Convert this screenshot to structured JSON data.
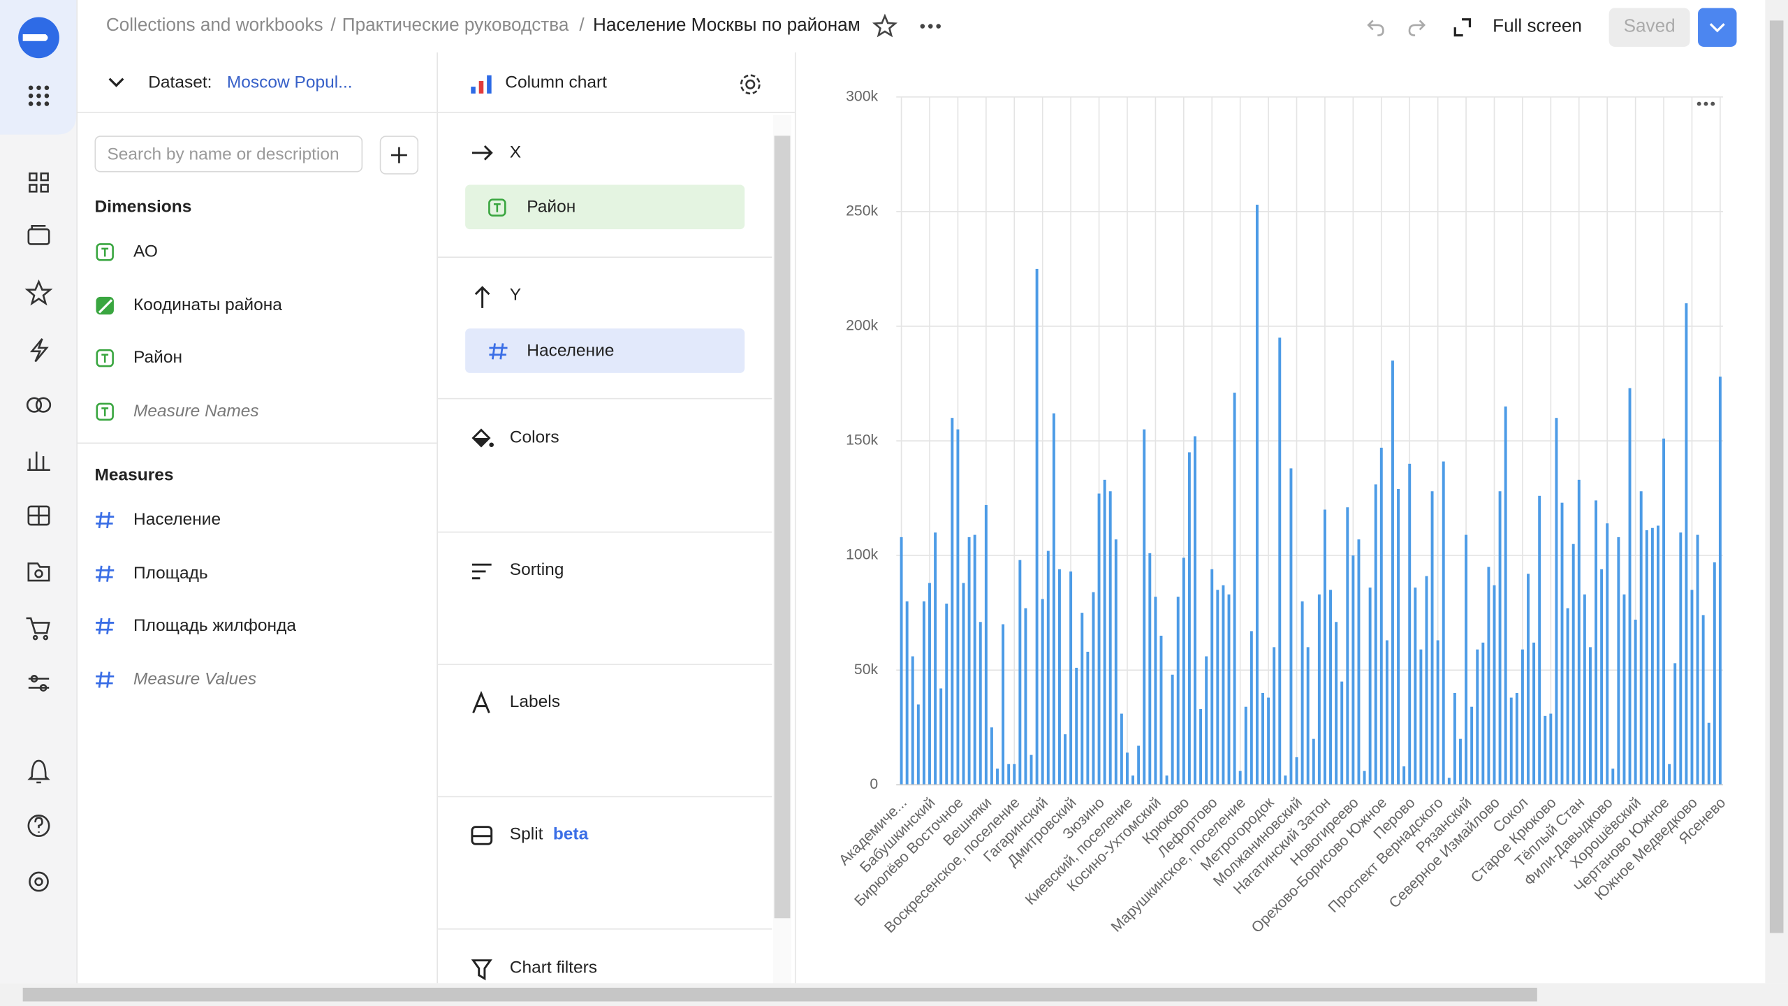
{
  "header": {
    "breadcrumbs": [
      "Collections and workbooks",
      "Практические руководства",
      "Население Москвы по районам"
    ],
    "separator": "/",
    "full_screen": "Full screen",
    "saved": "Saved"
  },
  "dataset": {
    "label": "Dataset:",
    "name": "Moscow Popul...",
    "search_placeholder": "Search by name or description"
  },
  "dimensions": {
    "title": "Dimensions",
    "items": [
      "АО",
      "Коодинаты района",
      "Район",
      "Measure Names"
    ]
  },
  "measures": {
    "title": "Measures",
    "items": [
      "Население",
      "Площадь",
      "Площадь жилфонда",
      "Measure Values"
    ]
  },
  "wizard": {
    "chart_type": "Column chart",
    "x": {
      "label": "X",
      "field": "Район"
    },
    "y": {
      "label": "Y",
      "field": "Население"
    },
    "colors": "Colors",
    "sorting": "Sorting",
    "labels": "Labels",
    "split": "Split",
    "split_badge": "beta",
    "filters": "Chart filters"
  },
  "chart_data": {
    "type": "bar",
    "color": "#4c9be6",
    "grid": true,
    "ylim": [
      0,
      300000
    ],
    "yticks": [
      0,
      {
        "value": 50000,
        "label": "50k"
      },
      {
        "value": 100000,
        "label": "100k"
      },
      {
        "value": 150000,
        "label": "150k"
      },
      {
        "value": 200000,
        "label": "200k"
      },
      {
        "value": 250000,
        "label": "250k"
      },
      {
        "value": 300000,
        "label": "300k"
      }
    ],
    "categories": [
      "Академиче...",
      null,
      null,
      null,
      null,
      "Бабушкинский",
      null,
      null,
      null,
      null,
      "Бирюлёво Восточное",
      null,
      null,
      null,
      null,
      "Вешняки",
      null,
      null,
      null,
      null,
      "Воскресенское, поселение",
      null,
      null,
      null,
      null,
      "Гагаринский",
      null,
      null,
      null,
      null,
      "Дмитровский",
      null,
      null,
      null,
      null,
      "Зюзино",
      null,
      null,
      null,
      null,
      "Киевский, поселение",
      null,
      null,
      null,
      null,
      "Косино-Ухтомский",
      null,
      null,
      null,
      null,
      "Крюково",
      null,
      null,
      null,
      null,
      "Лефортово",
      null,
      null,
      null,
      null,
      "Марушкинское, поселение",
      null,
      null,
      null,
      null,
      "Метрогородок",
      null,
      null,
      null,
      null,
      "Молжаниновский",
      null,
      null,
      null,
      null,
      "Нагатинский Затон",
      null,
      null,
      null,
      null,
      "Новогиреево",
      null,
      null,
      null,
      null,
      "Орехово-Борисово Южное",
      null,
      null,
      null,
      null,
      "Перово",
      null,
      null,
      null,
      null,
      "Проспект Вернадского",
      null,
      null,
      null,
      null,
      "Рязанский",
      null,
      null,
      null,
      null,
      "Северное Измайлово",
      null,
      null,
      null,
      null,
      "Сокол",
      null,
      null,
      null,
      null,
      "Старое Крюково",
      null,
      null,
      null,
      null,
      "Тёплый Стан",
      null,
      null,
      null,
      null,
      "Фили-Давыдково",
      null,
      null,
      null,
      null,
      "Хорошёвский",
      null,
      null,
      null,
      null,
      "Чертаново Южное",
      null,
      null,
      null,
      null,
      "Южное Медведково",
      null,
      null,
      null,
      null,
      "Ясенево"
    ],
    "values": [
      108000,
      80000,
      56000,
      35000,
      80000,
      88000,
      110000,
      42000,
      79000,
      160000,
      155000,
      88000,
      108000,
      109000,
      71000,
      122000,
      25000,
      7000,
      70000,
      9000,
      9000,
      98000,
      77000,
      13000,
      225000,
      81000,
      102000,
      162000,
      94000,
      22000,
      93000,
      51000,
      75000,
      58000,
      84000,
      127000,
      133000,
      128000,
      107000,
      31000,
      14000,
      4000,
      17000,
      155000,
      101000,
      82000,
      65000,
      4000,
      48000,
      82000,
      99000,
      145000,
      152000,
      33000,
      56000,
      94000,
      85000,
      87000,
      83000,
      171000,
      6000,
      34000,
      67000,
      253000,
      40000,
      38000,
      60000,
      195000,
      4000,
      138000,
      12000,
      80000,
      60000,
      20000,
      83000,
      120000,
      85000,
      71000,
      45000,
      121000,
      100000,
      107000,
      6000,
      86000,
      131000,
      147000,
      63000,
      185000,
      129000,
      8000,
      140000,
      86000,
      59000,
      91000,
      128000,
      63000,
      141000,
      3000,
      40000,
      20000,
      109000,
      34000,
      59000,
      62000,
      95000,
      87000,
      128000,
      165000,
      38000,
      40000,
      59000,
      92000,
      62000,
      126000,
      30000,
      31000,
      160000,
      123000,
      77000,
      105000,
      133000,
      83000,
      60000,
      124000,
      94000,
      114000,
      7000,
      108000,
      83000,
      173000,
      72000,
      128000,
      111000,
      112000,
      113000,
      151000,
      9000,
      53000,
      110000,
      210000,
      85000,
      109000,
      74000,
      27000,
      97000,
      178000
    ]
  }
}
